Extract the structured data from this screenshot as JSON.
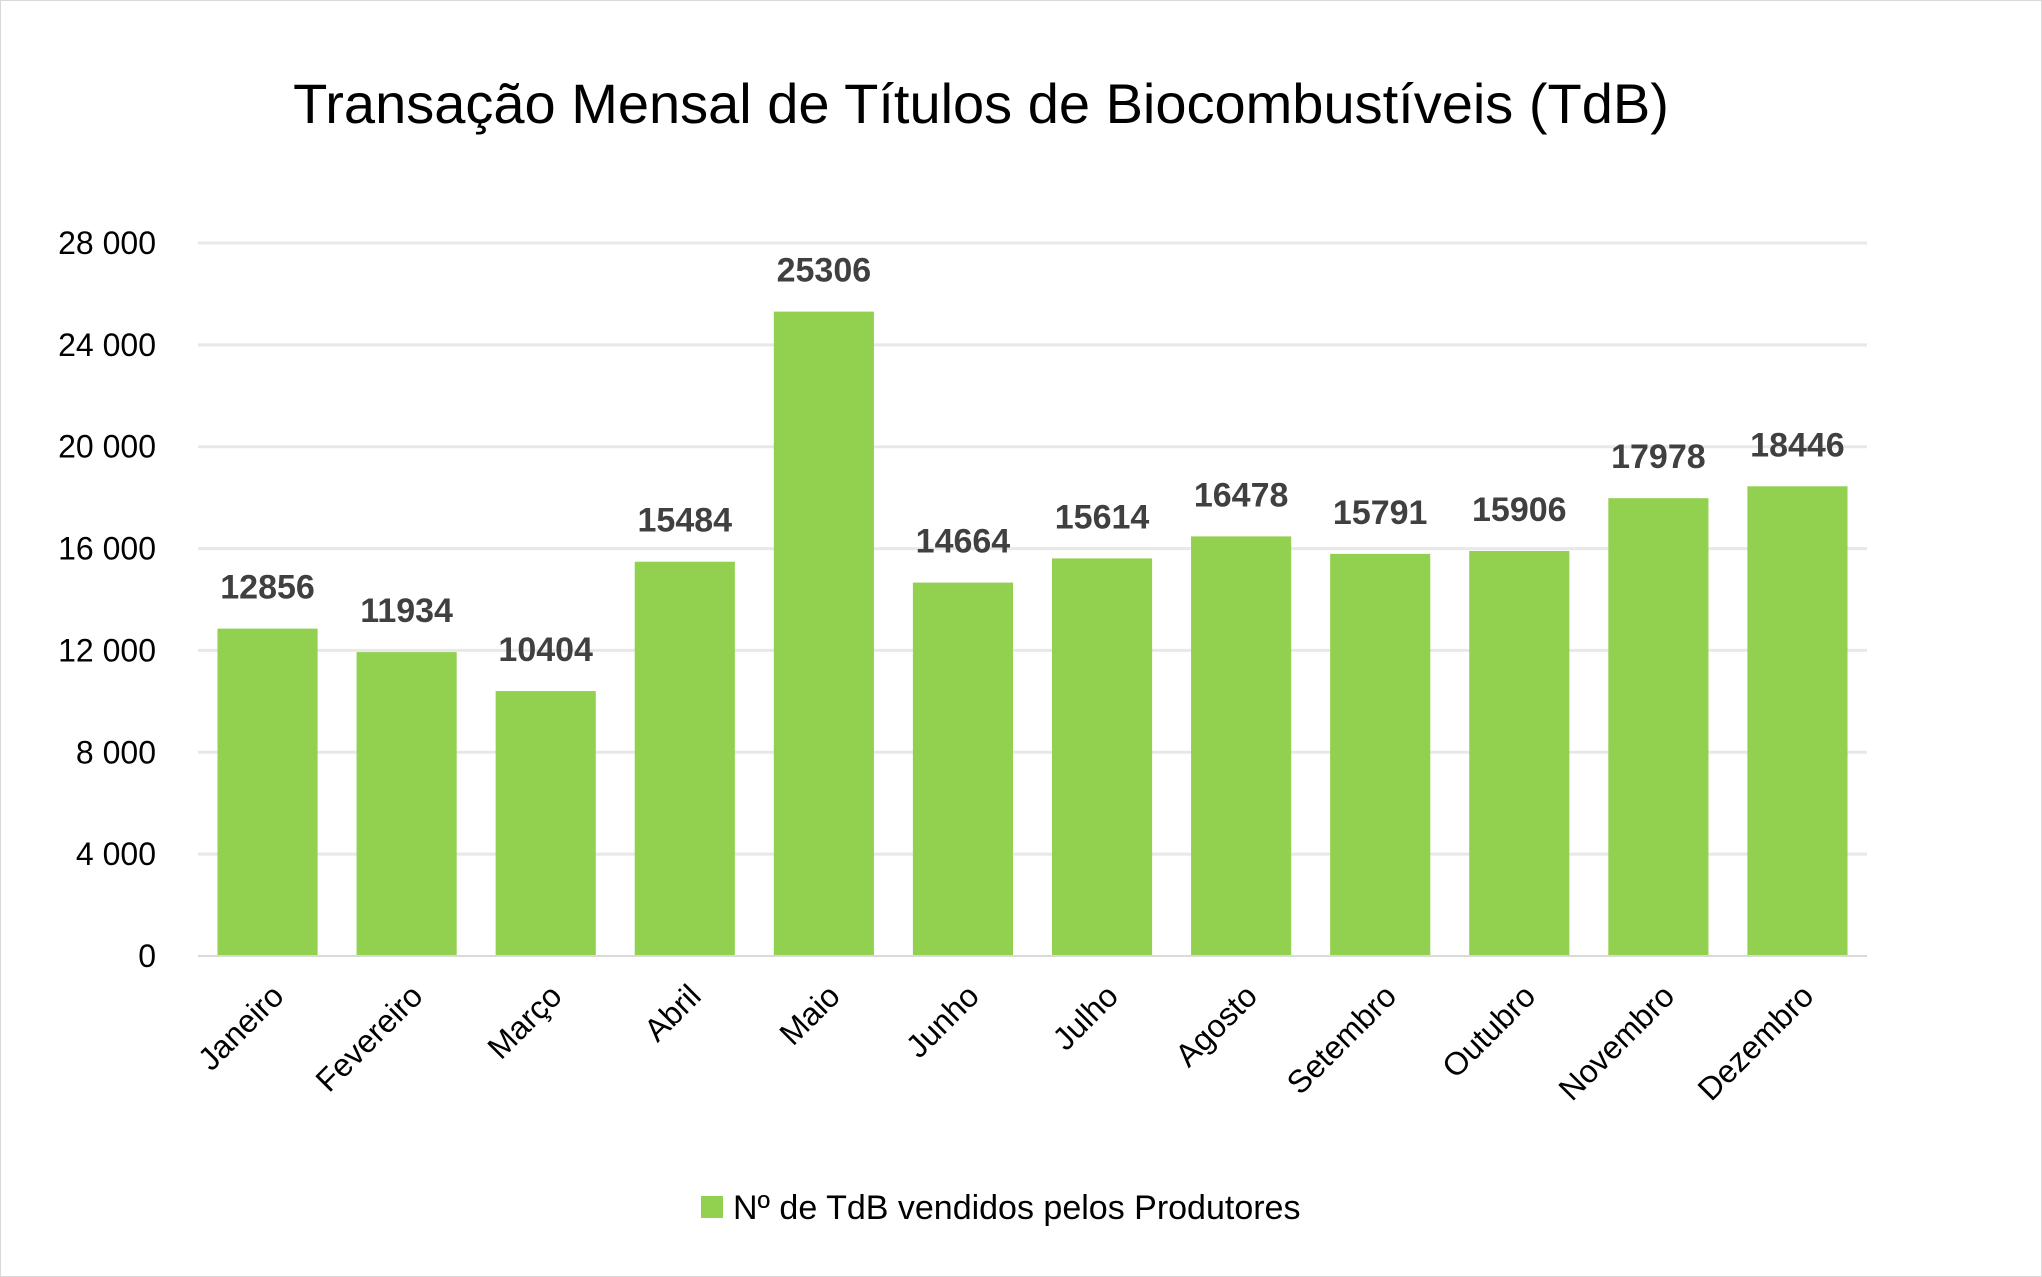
{
  "chart_data": {
    "type": "bar",
    "title": "Transação Mensal de Títulos de Biocombustíveis (TdB)",
    "xlabel": "",
    "ylabel": "",
    "categories": [
      "Janeiro",
      "Fevereiro",
      "Março",
      "Abril",
      "Maio",
      "Junho",
      "Julho",
      "Agosto",
      "Setembro",
      "Outubro",
      "Novembro",
      "Dezembro"
    ],
    "series": [
      {
        "name": "Nº de TdB vendidos pelos Produtores",
        "values": [
          12856,
          11934,
          10404,
          15484,
          25306,
          14664,
          15614,
          16478,
          15791,
          15906,
          17978,
          18446
        ],
        "color": "#92d050"
      }
    ],
    "ylim": [
      0,
      28000
    ],
    "yticks": [
      0,
      4000,
      8000,
      12000,
      16000,
      20000,
      24000,
      28000
    ],
    "ytick_labels": [
      "0",
      "4 000",
      "8 000",
      "12 000",
      "16 000",
      "20 000",
      "24 000",
      "28 000"
    ],
    "grid": true,
    "gridline_color": "#e8e8e8",
    "legend_position": "bottom",
    "data_labels": true
  }
}
